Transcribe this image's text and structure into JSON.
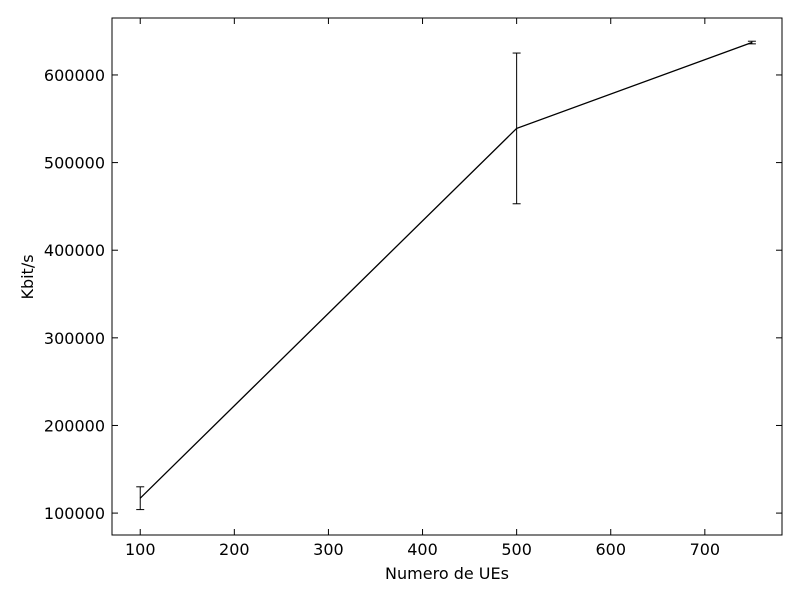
{
  "chart_data": {
    "type": "line",
    "title": "",
    "xlabel": "Numero de UEs",
    "ylabel": "Kbit/s",
    "xlim": [
      70,
      782
    ],
    "ylim": [
      75000,
      665000
    ],
    "grid": false,
    "legend": "none",
    "x_ticks": [
      100,
      200,
      300,
      400,
      500,
      600,
      700
    ],
    "y_ticks": [
      100000,
      200000,
      300000,
      400000,
      500000,
      600000
    ],
    "x_tick_labels": [
      "100",
      "200",
      "300",
      "400",
      "500",
      "600",
      "700"
    ],
    "y_tick_labels": [
      "100000",
      "200000",
      "300000",
      "400000",
      "500000",
      "600000"
    ],
    "series": [
      {
        "x": [
          100,
          500,
          750
        ],
        "y": [
          117000,
          539000,
          637000
        ],
        "error": [
          13000,
          86000,
          1500
        ],
        "color": "#000000"
      }
    ]
  }
}
